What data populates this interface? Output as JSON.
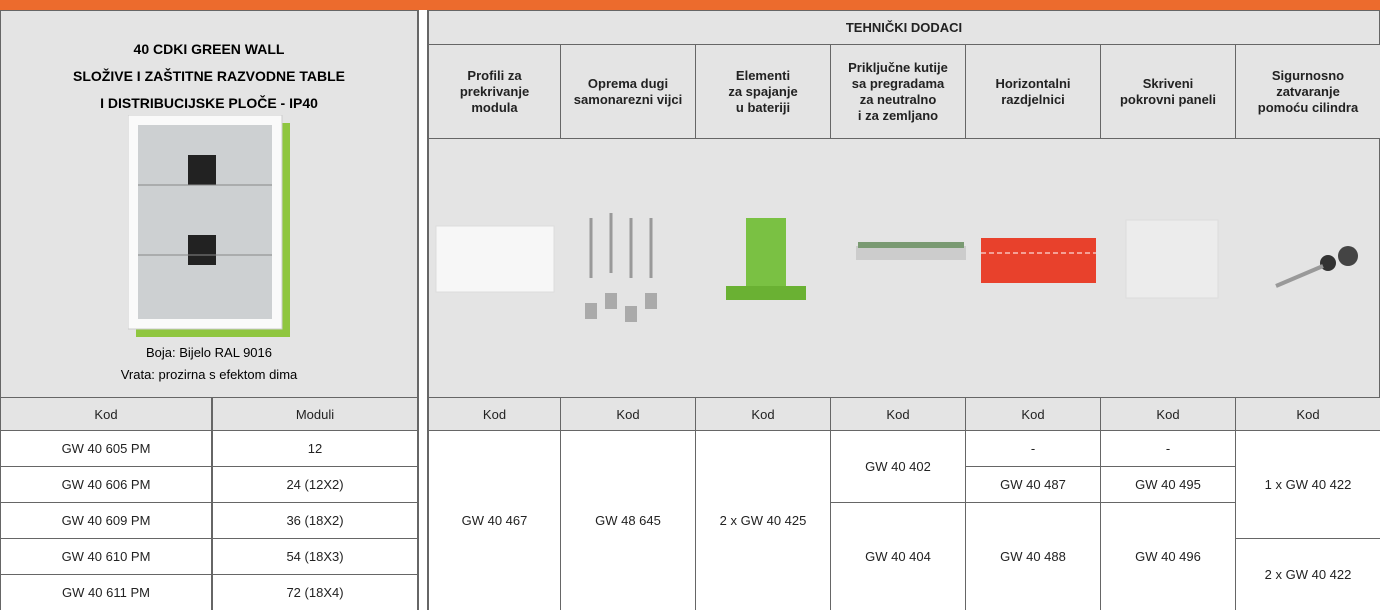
{
  "left": {
    "title": [
      "40 CDKI GREEN WALL",
      "SLOŽIVE I ZAŠTITNE RAZVODNE TABLE",
      "I DISTRIBUCIJSKE PLOČE - IP40"
    ],
    "caption": [
      "Boja: Bijelo RAL 9016",
      "Vrata: prozirna s efektom dima"
    ],
    "columns": [
      "Kod",
      "Moduli"
    ],
    "rows": [
      [
        "GW 40 605 PM",
        "12"
      ],
      [
        "GW 40 606 PM",
        "24 (12X2)"
      ],
      [
        "GW 40 609 PM",
        "36 (18X2)"
      ],
      [
        "GW 40 610 PM",
        "54 (18X3)"
      ],
      [
        "GW 40 611 PM",
        "72 (18X4)"
      ]
    ]
  },
  "right": {
    "title": "TEHNIČKI DODACI",
    "columns": [
      [
        "Profili za",
        "prekrivanje",
        "modula"
      ],
      [
        "Oprema dugi",
        "samonarezni vijci"
      ],
      [
        "Elementi",
        "za spajanje",
        "u bateriji"
      ],
      [
        "Priključne kutije",
        "sa pregradama",
        "za neutralno",
        "i za zemljano"
      ],
      [
        "Horizontalni",
        "razdjelnici"
      ],
      [
        "Skriveni",
        "pokrovni paneli"
      ],
      [
        "Sigurnosno",
        "zatvaranje",
        "pomoću cilindra"
      ]
    ],
    "code_label": [
      "Kod",
      "Kod",
      "Kod",
      "Kod",
      "Kod",
      "Kod",
      "Kod"
    ],
    "cells": [
      [
        "GW 40 467"
      ],
      [
        "GW 48 645"
      ],
      [
        "2 x GW 40 425"
      ],
      [
        "GW 40 402",
        "GW 40 404"
      ],
      [
        "-",
        "GW 40 487",
        "GW 40 488"
      ],
      [
        "-",
        "GW 40 495",
        "GW 40 496"
      ],
      [
        "1 x GW 40 422",
        "2 x GW 40 422"
      ]
    ]
  }
}
